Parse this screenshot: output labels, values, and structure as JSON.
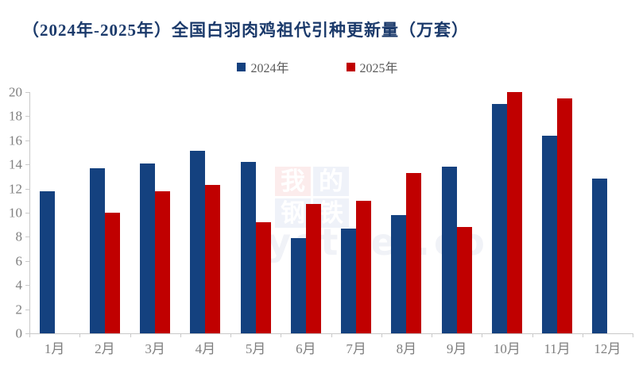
{
  "title": "（2024年-2025年）全国白羽肉鸡祖代引种更新量（万套）",
  "legend": {
    "items": [
      {
        "label": "2024年",
        "color": "#14417f"
      },
      {
        "label": "2025年",
        "color": "#c00000"
      }
    ]
  },
  "chart_data": {
    "type": "bar",
    "title": "（2024年-2025年）全国白羽肉鸡祖代引种更新量（万套）",
    "categories": [
      "1月",
      "2月",
      "3月",
      "4月",
      "5月",
      "6月",
      "7月",
      "8月",
      "9月",
      "10月",
      "11月",
      "12月"
    ],
    "series": [
      {
        "name": "2024年",
        "color": "#14417f",
        "values": [
          11.8,
          13.7,
          14.1,
          15.1,
          14.2,
          7.9,
          8.7,
          9.8,
          13.8,
          19.0,
          16.4,
          12.8
        ]
      },
      {
        "name": "2025年",
        "color": "#c00000",
        "values": [
          null,
          10.0,
          11.8,
          12.3,
          9.2,
          10.7,
          11.0,
          13.3,
          8.8,
          20.0,
          19.5,
          null
        ]
      }
    ],
    "xlabel": "",
    "ylabel": "",
    "ylim": [
      0,
      20
    ],
    "yticks": [
      0,
      2,
      4,
      6,
      8,
      10,
      12,
      14,
      16,
      18,
      20
    ],
    "grid": false,
    "legend_position": "top-center"
  },
  "watermark": {
    "tiles": [
      {
        "char": "我",
        "bg": "#fcecec"
      },
      {
        "char": "的",
        "bg": "#eff2f9"
      },
      {
        "char": "钢",
        "bg": "#eff2f9"
      },
      {
        "char": "铁",
        "bg": "#eff2f9"
      }
    ],
    "subtext": "ysteel.co"
  },
  "colors": {
    "title_text": "#1b3a6b",
    "axis_text": "#7f7f7f",
    "legend_text": "#595959",
    "axis_line": "#c9c9c9",
    "background": "#ffffff"
  }
}
